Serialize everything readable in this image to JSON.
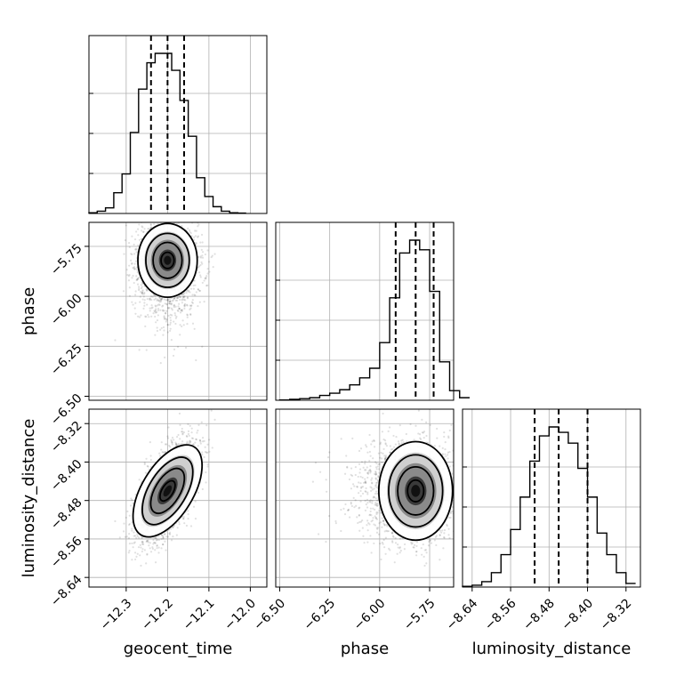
{
  "chart_data": {
    "type": "corner",
    "parameters": [
      "geocent_time",
      "phase",
      "luminosity_distance"
    ],
    "ranges": {
      "geocent_time": [
        -12.39,
        -11.96
      ],
      "phase": [
        -6.52,
        -5.63
      ],
      "luminosity_distance": [
        -8.66,
        -8.29
      ]
    },
    "ticks": {
      "geocent_time": [
        {
          "v": -12.3,
          "label": "−12.3"
        },
        {
          "v": -12.2,
          "label": "−12.2"
        },
        {
          "v": -12.1,
          "label": "−12.1"
        },
        {
          "v": -12.0,
          "label": "−12.0"
        }
      ],
      "phase": [
        {
          "v": -6.5,
          "label": "−6.50"
        },
        {
          "v": -6.25,
          "label": "−6.25"
        },
        {
          "v": -6.0,
          "label": "−6.00"
        },
        {
          "v": -5.75,
          "label": "−5.75"
        }
      ],
      "luminosity_distance": [
        {
          "v": -8.64,
          "label": "−8.64"
        },
        {
          "v": -8.56,
          "label": "−8.56"
        },
        {
          "v": -8.48,
          "label": "−8.48"
        },
        {
          "v": -8.4,
          "label": "−8.40"
        },
        {
          "v": -8.32,
          "label": "−8.32"
        }
      ]
    },
    "posterior": {
      "geocent_time": {
        "mean": -12.2,
        "sd": 0.035
      },
      "phase": {
        "mean": -5.82,
        "sd": 0.09
      },
      "luminosity_distance": {
        "mean": -8.46,
        "sd": 0.05
      },
      "correlations": {
        "geocent_time|luminosity_distance": 0.6
      }
    },
    "quantiles": {
      "geocent_time": [
        -12.24,
        -12.2,
        -12.16
      ],
      "phase": [
        -5.92,
        -5.82,
        -5.73
      ],
      "luminosity_distance": [
        -8.51,
        -8.46,
        -8.4
      ]
    },
    "histograms": {
      "geocent_time": {
        "edges": [
          -12.39,
          -12.37,
          -12.35,
          -12.33,
          -12.31,
          -12.29,
          -12.27,
          -12.25,
          -12.23,
          -12.21,
          -12.19,
          -12.17,
          -12.15,
          -12.13,
          -12.11,
          -12.09,
          -12.07,
          -12.05,
          -12.03,
          -12.01
        ],
        "counts": [
          2,
          6,
          15,
          55,
          105,
          215,
          330,
          400,
          425,
          425,
          380,
          300,
          205,
          95,
          45,
          18,
          6,
          2,
          1
        ]
      },
      "phase": {
        "edges": [
          -6.5,
          -6.45,
          -6.4,
          -6.35,
          -6.3,
          -6.25,
          -6.2,
          -6.15,
          -6.1,
          -6.05,
          -6.0,
          -5.95,
          -5.9,
          -5.85,
          -5.8,
          -5.75,
          -5.7,
          -5.65,
          -5.6,
          -5.55
        ],
        "counts": [
          1,
          3,
          5,
          8,
          15,
          22,
          33,
          48,
          70,
          100,
          180,
          320,
          460,
          500,
          470,
          340,
          120,
          30,
          8
        ]
      },
      "luminosity_distance": {
        "edges": [
          -8.66,
          -8.64,
          -8.62,
          -8.6,
          -8.58,
          -8.56,
          -8.54,
          -8.52,
          -8.5,
          -8.48,
          -8.46,
          -8.44,
          -8.42,
          -8.4,
          -8.38,
          -8.36,
          -8.34,
          -8.32,
          -8.3
        ],
        "counts": [
          2,
          5,
          15,
          40,
          90,
          160,
          250,
          350,
          420,
          445,
          430,
          400,
          330,
          250,
          150,
          90,
          40,
          10
        ]
      }
    }
  }
}
